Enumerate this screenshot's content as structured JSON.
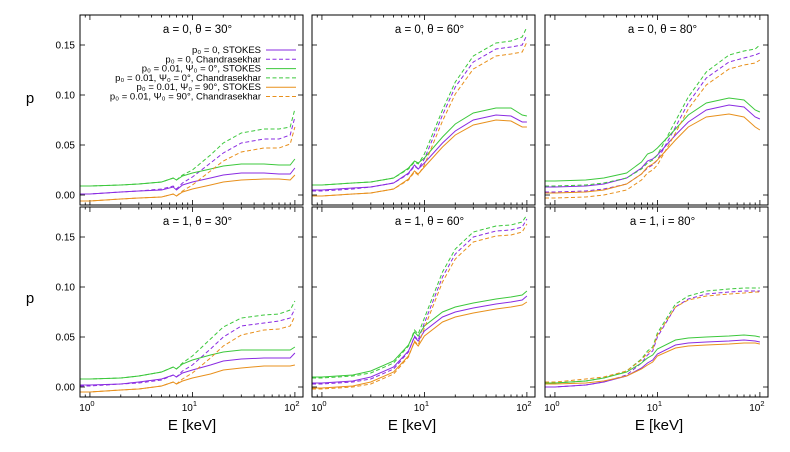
{
  "colors": {
    "purple": "#8a2be2",
    "green": "#3cc83c",
    "orange": "#e8901c"
  },
  "axes": {
    "xlabel": "E [keV]",
    "ylabel": "p",
    "x_scale": "log",
    "xlim": [
      0.8,
      120
    ],
    "ylim": [
      -0.01,
      0.18
    ],
    "y_ticks": [
      "0.00",
      "0.05",
      "0.10",
      "0.15"
    ],
    "y_tick_values": [
      0,
      0.05,
      0.1,
      0.15
    ],
    "x_tick_values": [
      1,
      10,
      100
    ],
    "x_tick_labels": [
      {
        "base": "10",
        "exp": "0"
      },
      {
        "base": "10",
        "exp": "1"
      },
      {
        "base": "10",
        "exp": "2"
      }
    ]
  },
  "legend": {
    "placement": "top-right of first panel",
    "entries": [
      {
        "label": "p₀ = 0, STOKES",
        "color": "purple",
        "dash": "solid"
      },
      {
        "label": "p₀ = 0, Chandrasekhar",
        "color": "purple",
        "dash": "dashed"
      },
      {
        "label": "p₀ = 0.01, Ψ₀ = 0°, STOKES",
        "color": "green",
        "dash": "solid"
      },
      {
        "label": "p₀ = 0.01, Ψ₀ = 0°, Chandrasekhar",
        "color": "green",
        "dash": "dashed"
      },
      {
        "label": "p₀ = 0.01, Ψ₀ = 90°, STOKES",
        "color": "orange",
        "dash": "solid"
      },
      {
        "label": "p₀ = 0.01, Ψ₀ = 90°, Chandrasekhar",
        "color": "orange",
        "dash": "dashed"
      }
    ]
  },
  "chart_data": [
    {
      "type": "line",
      "title": "a = 0, θ = 30°",
      "x": [
        0.8,
        1,
        2,
        3,
        5,
        6.5,
        7,
        8,
        10,
        15,
        20,
        30,
        50,
        70,
        90,
        100
      ],
      "series": [
        {
          "key": "purple",
          "dash": "solid",
          "values": [
            0.001,
            0.001,
            0.003,
            0.004,
            0.005,
            0.008,
            0.005,
            0.01,
            0.013,
            0.017,
            0.02,
            0.022,
            0.022,
            0.021,
            0.021,
            0.027
          ]
        },
        {
          "key": "purple",
          "dash": "dashed",
          "values": [
            0.001,
            0.001,
            0.003,
            0.004,
            0.006,
            0.009,
            0.006,
            0.012,
            0.018,
            0.032,
            0.042,
            0.052,
            0.056,
            0.056,
            0.06,
            0.078
          ]
        },
        {
          "key": "green",
          "dash": "solid",
          "values": [
            0.009,
            0.009,
            0.01,
            0.011,
            0.013,
            0.017,
            0.015,
            0.019,
            0.022,
            0.026,
            0.029,
            0.031,
            0.031,
            0.03,
            0.03,
            0.036
          ]
        },
        {
          "key": "green",
          "dash": "dashed",
          "values": [
            0.009,
            0.009,
            0.01,
            0.011,
            0.013,
            0.017,
            0.015,
            0.02,
            0.025,
            0.04,
            0.052,
            0.062,
            0.066,
            0.066,
            0.068,
            0.086
          ]
        },
        {
          "key": "orange",
          "dash": "solid",
          "values": [
            -0.006,
            -0.006,
            -0.004,
            -0.003,
            -0.002,
            0.001,
            -0.001,
            0.003,
            0.006,
            0.01,
            0.013,
            0.015,
            0.016,
            0.016,
            0.015,
            0.02
          ]
        },
        {
          "key": "orange",
          "dash": "dashed",
          "values": [
            -0.006,
            -0.006,
            -0.004,
            -0.003,
            -0.002,
            0.001,
            -0.001,
            0.004,
            0.01,
            0.024,
            0.034,
            0.043,
            0.047,
            0.047,
            0.051,
            0.068
          ]
        }
      ]
    },
    {
      "type": "line",
      "title": "a = 0, θ = 60°",
      "x": [
        0.8,
        1,
        2,
        3,
        5,
        7,
        8,
        8.7,
        10,
        15,
        20,
        30,
        50,
        70,
        90,
        100
      ],
      "series": [
        {
          "key": "purple",
          "dash": "solid",
          "values": [
            0.005,
            0.005,
            0.007,
            0.008,
            0.012,
            0.022,
            0.03,
            0.026,
            0.032,
            0.052,
            0.064,
            0.075,
            0.08,
            0.079,
            0.073,
            0.073
          ]
        },
        {
          "key": "purple",
          "dash": "dashed",
          "values": [
            0.004,
            0.004,
            0.006,
            0.008,
            0.012,
            0.021,
            0.029,
            0.026,
            0.036,
            0.08,
            0.108,
            0.133,
            0.146,
            0.148,
            0.15,
            0.16
          ]
        },
        {
          "key": "green",
          "dash": "solid",
          "values": [
            0.01,
            0.01,
            0.012,
            0.013,
            0.017,
            0.027,
            0.034,
            0.032,
            0.037,
            0.058,
            0.071,
            0.082,
            0.087,
            0.087,
            0.08,
            0.079
          ]
        },
        {
          "key": "green",
          "dash": "dashed",
          "values": [
            0.01,
            0.01,
            0.012,
            0.013,
            0.017,
            0.026,
            0.033,
            0.031,
            0.041,
            0.085,
            0.113,
            0.139,
            0.152,
            0.154,
            0.158,
            0.168
          ]
        },
        {
          "key": "orange",
          "dash": "solid",
          "values": [
            -0.001,
            -0.001,
            0.001,
            0.002,
            0.006,
            0.016,
            0.024,
            0.021,
            0.028,
            0.048,
            0.06,
            0.07,
            0.075,
            0.074,
            0.068,
            0.068
          ]
        },
        {
          "key": "orange",
          "dash": "dashed",
          "values": [
            -0.001,
            -0.001,
            0.001,
            0.002,
            0.006,
            0.015,
            0.023,
            0.02,
            0.03,
            0.074,
            0.101,
            0.126,
            0.139,
            0.141,
            0.143,
            0.153
          ]
        }
      ]
    },
    {
      "type": "line",
      "title": "a = 0, θ = 80°",
      "x": [
        0.8,
        1,
        2,
        3,
        5,
        7,
        8,
        9,
        10,
        15,
        20,
        30,
        50,
        70,
        90,
        100
      ],
      "series": [
        {
          "key": "purple",
          "dash": "solid",
          "values": [
            0.008,
            0.008,
            0.009,
            0.011,
            0.017,
            0.027,
            0.034,
            0.036,
            0.04,
            0.06,
            0.073,
            0.085,
            0.09,
            0.088,
            0.078,
            0.076
          ]
        },
        {
          "key": "purple",
          "dash": "dashed",
          "values": [
            0.003,
            0.003,
            0.004,
            0.006,
            0.011,
            0.021,
            0.027,
            0.03,
            0.035,
            0.068,
            0.092,
            0.117,
            0.133,
            0.137,
            0.14,
            0.142
          ]
        },
        {
          "key": "green",
          "dash": "solid",
          "values": [
            0.014,
            0.014,
            0.015,
            0.017,
            0.022,
            0.033,
            0.041,
            0.043,
            0.047,
            0.066,
            0.08,
            0.092,
            0.097,
            0.095,
            0.085,
            0.083
          ]
        },
        {
          "key": "green",
          "dash": "dashed",
          "values": [
            0.009,
            0.009,
            0.01,
            0.012,
            0.017,
            0.026,
            0.032,
            0.035,
            0.04,
            0.074,
            0.098,
            0.123,
            0.14,
            0.144,
            0.146,
            0.15
          ]
        },
        {
          "key": "orange",
          "dash": "solid",
          "values": [
            0.002,
            0.002,
            0.003,
            0.005,
            0.011,
            0.021,
            0.028,
            0.031,
            0.035,
            0.055,
            0.068,
            0.078,
            0.081,
            0.078,
            0.068,
            0.065
          ]
        },
        {
          "key": "orange",
          "dash": "dashed",
          "values": [
            -0.003,
            -0.003,
            -0.002,
            0.0,
            0.005,
            0.015,
            0.022,
            0.025,
            0.03,
            0.062,
            0.086,
            0.11,
            0.126,
            0.13,
            0.132,
            0.135
          ]
        }
      ]
    },
    {
      "type": "line",
      "title": "a = 1, θ = 30°",
      "x": [
        0.8,
        1,
        2,
        3,
        5,
        6.5,
        7,
        8,
        10,
        15,
        20,
        30,
        50,
        70,
        90,
        100
      ],
      "series": [
        {
          "key": "purple",
          "dash": "solid",
          "values": [
            0.002,
            0.002,
            0.003,
            0.005,
            0.008,
            0.012,
            0.01,
            0.014,
            0.017,
            0.022,
            0.026,
            0.028,
            0.029,
            0.029,
            0.029,
            0.034
          ]
        },
        {
          "key": "purple",
          "dash": "dashed",
          "values": [
            0.001,
            0.001,
            0.003,
            0.004,
            0.007,
            0.012,
            0.01,
            0.016,
            0.022,
            0.038,
            0.05,
            0.061,
            0.064,
            0.066,
            0.069,
            0.078
          ]
        },
        {
          "key": "green",
          "dash": "solid",
          "values": [
            0.008,
            0.008,
            0.009,
            0.011,
            0.015,
            0.02,
            0.018,
            0.023,
            0.027,
            0.032,
            0.035,
            0.037,
            0.037,
            0.037,
            0.037,
            0.04
          ]
        },
        {
          "key": "green",
          "dash": "dashed",
          "values": [
            0.008,
            0.008,
            0.009,
            0.011,
            0.015,
            0.02,
            0.018,
            0.024,
            0.031,
            0.048,
            0.06,
            0.069,
            0.072,
            0.073,
            0.077,
            0.086
          ]
        },
        {
          "key": "orange",
          "dash": "solid",
          "values": [
            -0.005,
            -0.005,
            -0.003,
            -0.002,
            0.001,
            0.005,
            0.003,
            0.006,
            0.009,
            0.013,
            0.017,
            0.019,
            0.021,
            0.021,
            0.021,
            0.022
          ]
        },
        {
          "key": "orange",
          "dash": "dashed",
          "values": [
            -0.005,
            -0.005,
            -0.003,
            -0.002,
            0.001,
            0.005,
            0.003,
            0.008,
            0.014,
            0.029,
            0.041,
            0.052,
            0.057,
            0.058,
            0.061,
            0.071
          ]
        }
      ]
    },
    {
      "type": "line",
      "title": "a = 1, θ = 60°",
      "x": [
        0.8,
        1,
        2,
        3,
        5,
        7,
        8,
        8.7,
        10,
        15,
        20,
        30,
        50,
        70,
        90,
        100
      ],
      "series": [
        {
          "key": "purple",
          "dash": "solid",
          "values": [
            0.004,
            0.004,
            0.006,
            0.01,
            0.02,
            0.036,
            0.05,
            0.046,
            0.056,
            0.07,
            0.075,
            0.079,
            0.083,
            0.085,
            0.087,
            0.091
          ]
        },
        {
          "key": "purple",
          "dash": "dashed",
          "values": [
            0.003,
            0.003,
            0.005,
            0.008,
            0.018,
            0.035,
            0.051,
            0.047,
            0.064,
            0.11,
            0.133,
            0.15,
            0.156,
            0.157,
            0.16,
            0.168
          ]
        },
        {
          "key": "green",
          "dash": "solid",
          "values": [
            0.01,
            0.01,
            0.012,
            0.016,
            0.026,
            0.042,
            0.055,
            0.051,
            0.061,
            0.075,
            0.08,
            0.084,
            0.088,
            0.09,
            0.092,
            0.096
          ]
        },
        {
          "key": "green",
          "dash": "dashed",
          "values": [
            0.009,
            0.009,
            0.011,
            0.014,
            0.024,
            0.041,
            0.057,
            0.053,
            0.069,
            0.115,
            0.138,
            0.155,
            0.161,
            0.162,
            0.165,
            0.172
          ]
        },
        {
          "key": "orange",
          "dash": "solid",
          "values": [
            -0.001,
            -0.001,
            0.001,
            0.005,
            0.015,
            0.031,
            0.045,
            0.041,
            0.051,
            0.065,
            0.07,
            0.074,
            0.078,
            0.08,
            0.082,
            0.085
          ]
        },
        {
          "key": "orange",
          "dash": "dashed",
          "values": [
            -0.002,
            -0.002,
            0.0,
            0.003,
            0.013,
            0.03,
            0.046,
            0.042,
            0.059,
            0.105,
            0.128,
            0.145,
            0.151,
            0.152,
            0.155,
            0.163
          ]
        }
      ]
    },
    {
      "type": "line",
      "title": "a = 1, i = 80°",
      "x": [
        0.8,
        1,
        2,
        3,
        5,
        7,
        8,
        9,
        10,
        15,
        20,
        30,
        50,
        70,
        90,
        100
      ],
      "series": [
        {
          "key": "purple",
          "dash": "solid",
          "values": [
            0.0,
            0.0,
            0.002,
            0.005,
            0.011,
            0.019,
            0.024,
            0.027,
            0.033,
            0.042,
            0.044,
            0.045,
            0.046,
            0.047,
            0.046,
            0.045
          ]
        },
        {
          "key": "purple",
          "dash": "dashed",
          "values": [
            0.0,
            0.0,
            0.002,
            0.005,
            0.012,
            0.024,
            0.032,
            0.036,
            0.05,
            0.08,
            0.088,
            0.093,
            0.095,
            0.096,
            0.096,
            0.096
          ]
        },
        {
          "key": "green",
          "dash": "solid",
          "values": [
            0.004,
            0.004,
            0.006,
            0.009,
            0.015,
            0.024,
            0.029,
            0.032,
            0.038,
            0.047,
            0.049,
            0.05,
            0.051,
            0.052,
            0.051,
            0.05
          ]
        },
        {
          "key": "green",
          "dash": "dashed",
          "values": [
            0.004,
            0.004,
            0.006,
            0.009,
            0.016,
            0.028,
            0.036,
            0.04,
            0.054,
            0.083,
            0.091,
            0.096,
            0.098,
            0.099,
            0.099,
            0.099
          ]
        },
        {
          "key": "orange",
          "dash": "solid",
          "values": [
            0.003,
            0.003,
            0.004,
            0.006,
            0.011,
            0.018,
            0.022,
            0.025,
            0.031,
            0.039,
            0.041,
            0.042,
            0.043,
            0.044,
            0.044,
            0.043
          ]
        },
        {
          "key": "orange",
          "dash": "dashed",
          "values": [
            0.005,
            0.005,
            0.008,
            0.01,
            0.016,
            0.027,
            0.034,
            0.038,
            0.052,
            0.08,
            0.087,
            0.091,
            0.093,
            0.094,
            0.095,
            0.095
          ]
        }
      ]
    }
  ]
}
